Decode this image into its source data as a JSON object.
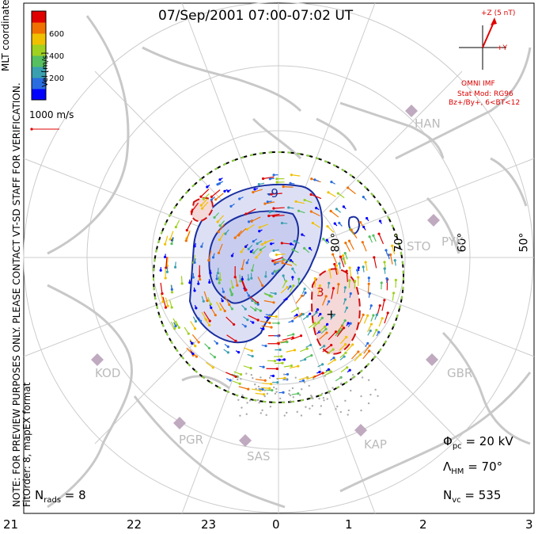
{
  "title": "07/Sep/2001 07:00-07:02 UT",
  "coords_label": "MLT coordinates",
  "notice_line1": "NOTE: FOR PREVIEW PURPOSES ONLY. PLEASE CONTACT VT-SD STAFF FOR VERIFICATION.",
  "notice_line2": "FitOrder: 8,  mapEX format",
  "colorbar": {
    "label": "Vel [m/s]",
    "ticks": [
      "600",
      "400",
      "200"
    ],
    "colors": [
      "#0000ff",
      "#2a6de0",
      "#3aa0b0",
      "#56c060",
      "#a0d020",
      "#f0c000",
      "#f07000",
      "#e00000"
    ]
  },
  "ref_speed": "1000 m/s",
  "imf": {
    "bz_label": "+Z (5 nT)",
    "by_label": "+Y",
    "source": "OMNI IMF",
    "model": "Stat Mod: RG96",
    "model_bin": "Bz+/By+, 6<BT<12"
  },
  "stats": {
    "phi_sym": "Φ",
    "phi_sub": "pc",
    "phi_val": " = 20 kV",
    "lam_sym": "Λ",
    "lam_sub": "HM",
    "lam_val": " = 70°",
    "nvc_sym": "N",
    "nvc_sub": "vc",
    "nvc_val": " = 535",
    "nrads_sym": "N",
    "nrads_sub": "rads",
    "nrads_val": " = 8"
  },
  "mlt_ticks": [
    "21",
    "22",
    "23",
    "0",
    "1",
    "2",
    "3"
  ],
  "lat_labels": [
    "80°",
    "70°",
    "60°",
    "50°"
  ],
  "stations": [
    "HAN",
    "STO",
    "PYK",
    "KOD",
    "GBR",
    "PGR",
    "SAS",
    "KAP"
  ],
  "contours": {
    "neg": "-9",
    "pos": "3"
  },
  "colors": {
    "neg_cell": "#1a2fa0",
    "pos_cell": "#d01010",
    "land": "#c8c8c8"
  }
}
